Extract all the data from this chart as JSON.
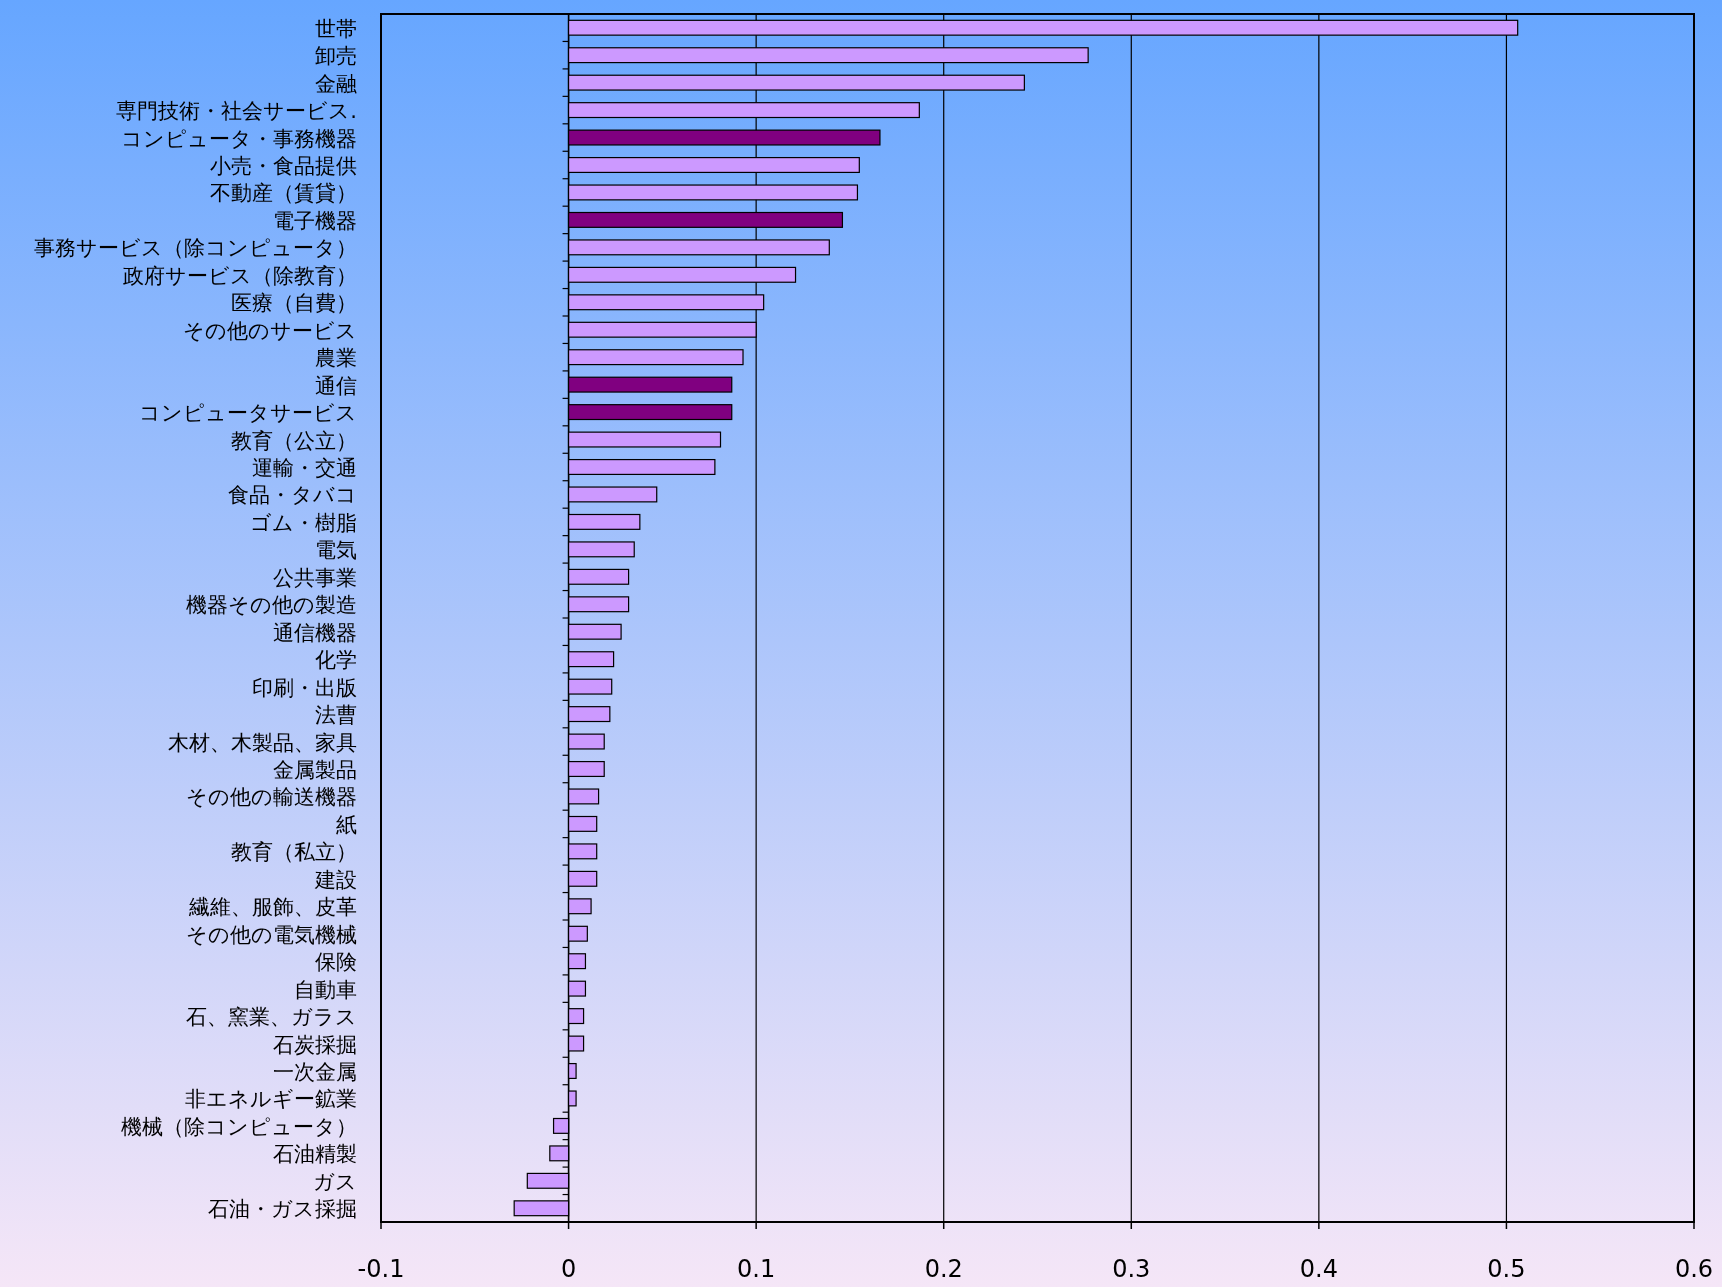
{
  "chart_data": {
    "type": "bar",
    "orientation": "horizontal",
    "grid": "x",
    "categories": [
      "世帯",
      "卸売",
      "金融",
      "専門技術・社会サービス.",
      "コンピュータ・事務機器",
      "小売・食品提供",
      "不動産（賃貸）",
      "電子機器",
      "事務サービス（除コンピュータ）",
      "政府サービス（除教育）",
      "医療（自費）",
      "その他のサービス",
      "農業",
      "通信",
      "コンピュータサービス",
      "教育（公立）",
      "運輸・交通",
      "食品・タバコ",
      "ゴム・樹脂",
      "電気",
      "公共事業",
      "機器その他の製造",
      "通信機器",
      "化学",
      "印刷・出版",
      "法曹",
      "木材、木製品、家具",
      "金属製品",
      "その他の輸送機器",
      "紙",
      "教育（私立）",
      "建設",
      "繊維、服飾、皮革",
      "その他の電気機械",
      "保険",
      "自動車",
      "石、窯業、ガラス",
      "石炭採掘",
      "一次金属",
      "非エネルギー鉱業",
      "機械（除コンピュータ）",
      "石油精製",
      "ガス",
      "石油・ガス採掘"
    ],
    "values": [
      0.506,
      0.277,
      0.243,
      0.187,
      0.166,
      0.155,
      0.154,
      0.146,
      0.139,
      0.121,
      0.104,
      0.1,
      0.093,
      0.087,
      0.087,
      0.081,
      0.078,
      0.047,
      0.038,
      0.035,
      0.032,
      0.032,
      0.028,
      0.024,
      0.023,
      0.022,
      0.019,
      0.019,
      0.016,
      0.015,
      0.015,
      0.015,
      0.012,
      0.01,
      0.009,
      0.009,
      0.008,
      0.008,
      0.004,
      0.004,
      -0.008,
      -0.01,
      -0.022,
      -0.029
    ],
    "colors": [
      "#cc99ff",
      "#cc99ff",
      "#cc99ff",
      "#cc99ff",
      "#800080",
      "#cc99ff",
      "#cc99ff",
      "#800080",
      "#cc99ff",
      "#cc99ff",
      "#cc99ff",
      "#cc99ff",
      "#cc99ff",
      "#800080",
      "#800080",
      "#cc99ff",
      "#cc99ff",
      "#cc99ff",
      "#cc99ff",
      "#cc99ff",
      "#cc99ff",
      "#cc99ff",
      "#cc99ff",
      "#cc99ff",
      "#cc99ff",
      "#cc99ff",
      "#cc99ff",
      "#cc99ff",
      "#cc99ff",
      "#cc99ff",
      "#cc99ff",
      "#cc99ff",
      "#cc99ff",
      "#cc99ff",
      "#cc99ff",
      "#cc99ff",
      "#cc99ff",
      "#cc99ff",
      "#cc99ff",
      "#cc99ff",
      "#cc99ff",
      "#cc99ff",
      "#cc99ff",
      "#cc99ff"
    ],
    "xlim": [
      -0.1,
      0.6
    ],
    "xticks": [
      -0.1,
      0,
      0.1,
      0.2,
      0.3,
      0.4,
      0.5,
      0.6
    ]
  }
}
